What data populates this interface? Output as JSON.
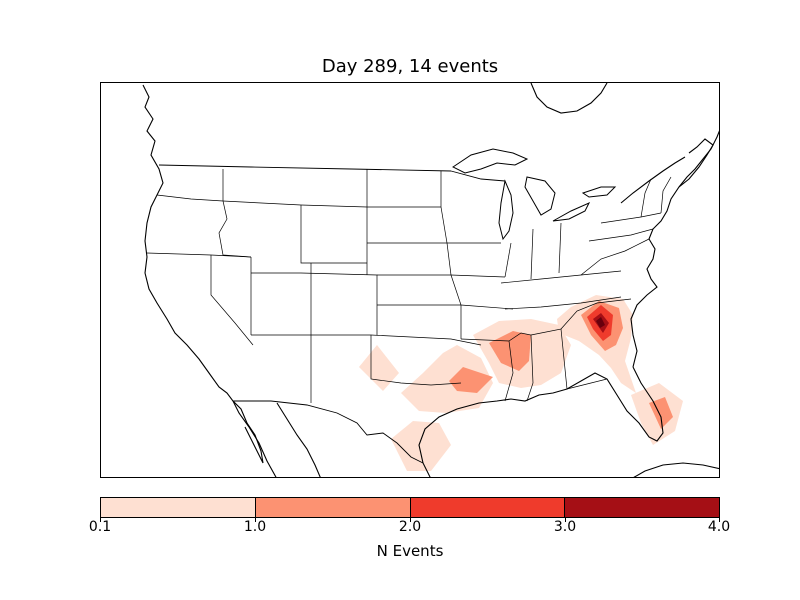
{
  "map": {
    "title": "Day 289, 14 events",
    "colorbar": {
      "label": "N Events",
      "ticks": [
        "0.1",
        "1.0",
        "2.0",
        "3.0",
        "4.0"
      ],
      "colors": [
        "#fee0d2",
        "#fc9272",
        "#ef3b2c",
        "#a50f15"
      ]
    },
    "features": [
      "coastlines",
      "country-borders",
      "state-borders",
      "great-lakes"
    ],
    "event_contours": [
      {
        "region": "southeast-atlantic-coast",
        "max_level": "3.0-4.0"
      },
      {
        "region": "mississippi-alabama",
        "max_level": "1.0-2.0"
      },
      {
        "region": "louisiana-coast",
        "max_level": "1.0-2.0"
      },
      {
        "region": "east-texas",
        "max_level": "0.1-1.0"
      },
      {
        "region": "south-texas",
        "max_level": "0.1-1.0"
      },
      {
        "region": "south-florida",
        "max_level": "1.0-2.0"
      },
      {
        "region": "north-texas",
        "max_level": "0.1-1.0"
      }
    ]
  }
}
